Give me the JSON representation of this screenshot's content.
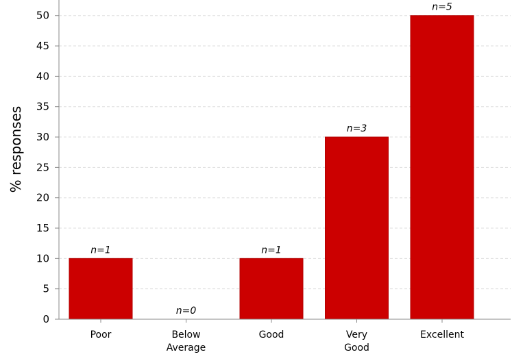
{
  "chart_data": {
    "type": "bar",
    "title": "",
    "xlabel": "",
    "ylabel": "% responses",
    "categories": [
      [
        "Poor"
      ],
      [
        "Below",
        "Average"
      ],
      [
        "Good"
      ],
      [
        "Very",
        "Good"
      ],
      [
        "Excellent"
      ]
    ],
    "values": [
      10,
      0,
      10,
      30,
      50
    ],
    "data_labels": [
      "n=1",
      "n=0",
      "n=1",
      "n=3",
      "n=5"
    ],
    "ylim": [
      0,
      52
    ],
    "yticks": [
      0,
      5,
      10,
      15,
      20,
      25,
      30,
      35,
      40,
      45,
      50
    ],
    "grid": true,
    "grid_style": "dashed-horizontal",
    "bar_color": "#cc0000",
    "grid_color": "#dddddd",
    "axis_color": "#888888"
  }
}
